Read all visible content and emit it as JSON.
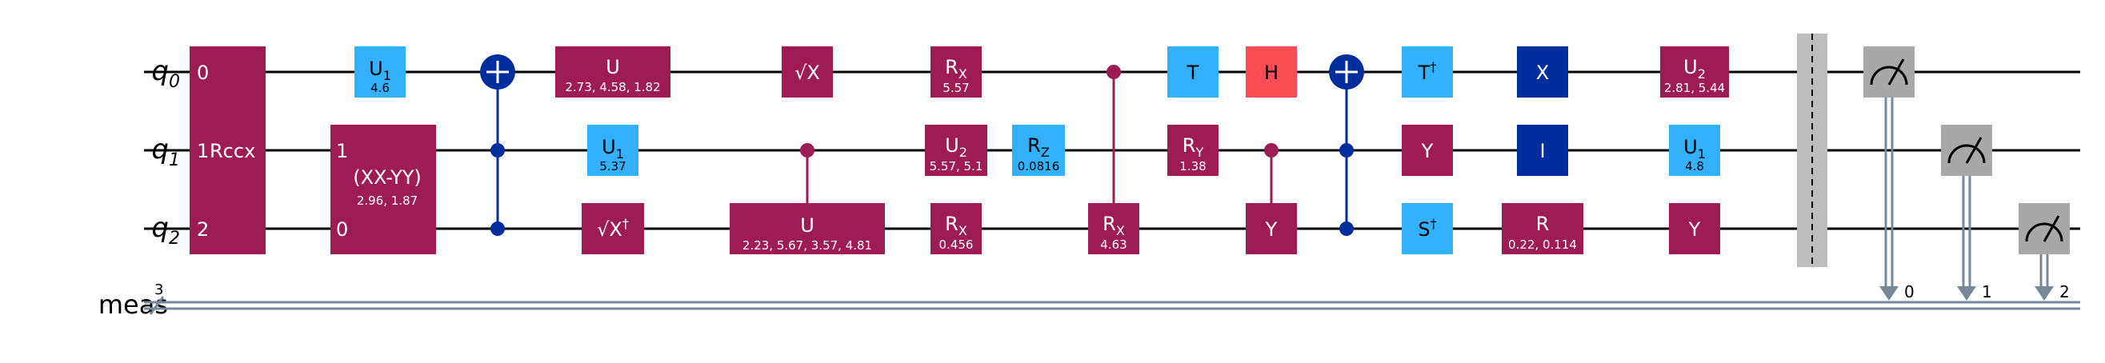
{
  "register_labels": {
    "q0": {
      "name": "q",
      "sub": "0"
    },
    "q1": {
      "name": "q",
      "sub": "1"
    },
    "q2": {
      "name": "q",
      "sub": "2"
    },
    "meas": "meas",
    "meas_width": "3"
  },
  "gates": {
    "rccx": {
      "label": "Rccx",
      "pin0": "0",
      "pin1": "1",
      "pin2": "2"
    },
    "u1_a": {
      "label": "U",
      "sub": "1",
      "param": "4.6"
    },
    "xxyy": {
      "label": "(XX-YY)",
      "param": "2.96, 1.87",
      "pin_top": "1",
      "pin_bottom": "0"
    },
    "u_q0": {
      "label": "U",
      "param": "2.73, 4.58, 1.82"
    },
    "u1_b": {
      "label": "U",
      "sub": "1",
      "param": "5.37"
    },
    "sxdg": {
      "label": "√X",
      "dagger": "†"
    },
    "sx": {
      "label": "√X"
    },
    "cu": {
      "label": "U",
      "param": "2.23, 5.67, 3.57, 4.81"
    },
    "rx_q0": {
      "label": "R",
      "sub": "X",
      "param": "5.57"
    },
    "u2_q1": {
      "label": "U",
      "sub": "2",
      "param": "5.57, 5.1"
    },
    "rx_q2": {
      "label": "R",
      "sub": "X",
      "param": "0.456"
    },
    "rz_q1": {
      "label": "R",
      "sub": "Z",
      "param": "0.0816"
    },
    "crx": {
      "label": "R",
      "sub": "X",
      "param": "4.63"
    },
    "t": {
      "label": "T"
    },
    "ry_q1": {
      "label": "R",
      "sub": "Y",
      "param": "1.38"
    },
    "h": {
      "label": "H"
    },
    "cy": {
      "label": "Y"
    },
    "tdg": {
      "label": "T",
      "dagger": "†"
    },
    "y_q1": {
      "label": "Y"
    },
    "sdg": {
      "label": "S",
      "dagger": "†"
    },
    "x": {
      "label": "X"
    },
    "i": {
      "label": "I"
    },
    "r": {
      "label": "R",
      "param": "0.22, 0.114"
    },
    "u2_q0": {
      "label": "U",
      "sub": "2",
      "param": "2.81, 5.44"
    },
    "u1_c": {
      "label": "U",
      "sub": "1",
      "param": "4.8"
    },
    "y_q2": {
      "label": "Y"
    }
  },
  "measurements": {
    "bit0": "0",
    "bit1": "1",
    "bit2": "2"
  },
  "colors": {
    "magenta": "#9D1C54",
    "light_blue": "#33B1FF",
    "dark_blue": "#002D9C",
    "red": "#FA4D56",
    "gray_barrier": "#BDBDBD",
    "meter_gray": "#A8A8A8",
    "classical": "#778899"
  }
}
